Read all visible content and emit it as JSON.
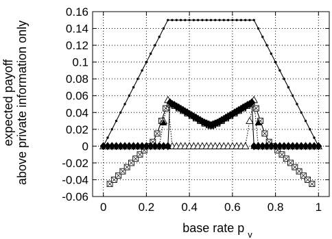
{
  "chart_data": {
    "type": "line",
    "title": "",
    "xlabel_main": "base rate p",
    "xlabel_sub": "v",
    "ylabel_lines": [
      "expected payoff",
      "above private information only"
    ],
    "xlim": [
      -0.05,
      1.05
    ],
    "ylim": [
      -0.06,
      0.16
    ],
    "x_ticks": [
      0,
      0.2,
      0.4,
      0.6,
      0.8,
      1
    ],
    "x_tick_labels": [
      "0",
      "0.2",
      "0.4",
      "0.6",
      "0.8",
      "1"
    ],
    "y_ticks": [
      -0.06,
      -0.04,
      -0.02,
      0,
      0.02,
      0.04,
      0.06,
      0.08,
      0.1,
      0.12,
      0.14,
      0.16
    ],
    "y_tick_labels": [
      "-0.06",
      "-0.04",
      "-0.02",
      "0",
      "0.02",
      "0.04",
      "0.06",
      "0.08",
      "0.1",
      "0.12",
      "0.14",
      "0.16"
    ],
    "grid": true,
    "legend": "none",
    "series": [
      {
        "marker": "dot",
        "line": "solid",
        "x": [
          0,
          0.02,
          0.04,
          0.06,
          0.08,
          0.1,
          0.12,
          0.14,
          0.16,
          0.18,
          0.2,
          0.22,
          0.24,
          0.26,
          0.28,
          0.3,
          0.32,
          0.34,
          0.36,
          0.38,
          0.4,
          0.42,
          0.44,
          0.46,
          0.48,
          0.5,
          0.52,
          0.54,
          0.56,
          0.58,
          0.6,
          0.62,
          0.64,
          0.66,
          0.68,
          0.7,
          0.72,
          0.74,
          0.76,
          0.78,
          0.8,
          0.82,
          0.84,
          0.86,
          0.88,
          0.9,
          0.92,
          0.94,
          0.96,
          0.98,
          1
        ],
        "y": [
          0,
          0.01,
          0.02,
          0.03,
          0.04,
          0.05,
          0.06,
          0.07,
          0.08,
          0.09,
          0.1,
          0.11,
          0.12,
          0.13,
          0.14,
          0.15,
          0.15,
          0.15,
          0.15,
          0.15,
          0.15,
          0.15,
          0.15,
          0.15,
          0.15,
          0.15,
          0.15,
          0.15,
          0.15,
          0.15,
          0.15,
          0.15,
          0.15,
          0.15,
          0.15,
          0.15,
          0.14,
          0.13,
          0.12,
          0.11,
          0.1,
          0.09,
          0.08,
          0.07,
          0.06,
          0.05,
          0.04,
          0.03,
          0.02,
          0.01,
          0
        ]
      },
      {
        "marker": "open-square-x",
        "line": "solid",
        "x": [
          0.03,
          0.05,
          0.07,
          0.09,
          0.11,
          0.13,
          0.15,
          0.17,
          0.19,
          0.21,
          0.23,
          0.25,
          0.27,
          0.29,
          0.31,
          0.33,
          0.35,
          0.37,
          0.39,
          0.41,
          0.43,
          0.45,
          0.47,
          0.49,
          0.5,
          0.51,
          0.53,
          0.55,
          0.57,
          0.59,
          0.61,
          0.63,
          0.65,
          0.67,
          0.69,
          0.71,
          0.73,
          0.75,
          0.77,
          0.79,
          0.81,
          0.83,
          0.85,
          0.87,
          0.89,
          0.91,
          0.93,
          0.95,
          0.97
        ],
        "y": [
          -0.045,
          -0.04,
          -0.035,
          -0.03,
          -0.025,
          -0.02,
          -0.015,
          -0.01,
          -0.005,
          0,
          0.005,
          0.015,
          0.03,
          0.045,
          0.05,
          0.048,
          0.045,
          0.042,
          0.039,
          0.036,
          0.033,
          0.03,
          0.027,
          0.025,
          0.024,
          0.025,
          0.027,
          0.03,
          0.033,
          0.036,
          0.039,
          0.042,
          0.045,
          0.048,
          0.05,
          0.045,
          0.03,
          0.015,
          0.005,
          0,
          -0.005,
          -0.01,
          -0.015,
          -0.02,
          -0.025,
          -0.03,
          -0.035,
          -0.04,
          -0.045
        ]
      },
      {
        "marker": "open-triangle",
        "line": "dotted",
        "x": [
          0,
          0.02,
          0.04,
          0.06,
          0.08,
          0.1,
          0.12,
          0.14,
          0.16,
          0.18,
          0.2,
          0.22,
          0.24,
          0.26,
          0.28,
          0.3,
          0.32,
          0.34,
          0.36,
          0.38,
          0.4,
          0.42,
          0.44,
          0.46,
          0.48,
          0.5,
          0.52,
          0.54,
          0.56,
          0.58,
          0.6,
          0.62,
          0.64,
          0.66,
          0.68,
          0.7,
          0.72,
          0.74,
          0.76,
          0.78,
          0.8,
          0.82,
          0.84,
          0.86,
          0.88,
          0.9,
          0.92,
          0.94,
          0.96,
          0.98,
          1
        ],
        "y": [
          0,
          0,
          0,
          0,
          0,
          0,
          0,
          0,
          0,
          0,
          0,
          0,
          0,
          0,
          0.03,
          0.055,
          0,
          0,
          0,
          0,
          0,
          0,
          0,
          0,
          0,
          0,
          0,
          0,
          0,
          0,
          0,
          0,
          0,
          0,
          0.03,
          0.055,
          0,
          0,
          0,
          0,
          0,
          0,
          0,
          0,
          0,
          0,
          0,
          0,
          0,
          0,
          0
        ]
      },
      {
        "marker": "filled-triangle",
        "line": "none",
        "x": [
          0.28,
          0.3,
          0.7,
          0.72
        ],
        "y": [
          0.028,
          0,
          0,
          0.028
        ]
      },
      {
        "marker": "filled-diamond",
        "line": "solid",
        "x": [
          0,
          0.02,
          0.04,
          0.06,
          0.08,
          0.1,
          0.12,
          0.14,
          0.16,
          0.18,
          0.2,
          0.22,
          0.24,
          0.26,
          0.28,
          0.3,
          0.31,
          0.32,
          0.33,
          0.34,
          0.35,
          0.36,
          0.37,
          0.38,
          0.39,
          0.4,
          0.41,
          0.42,
          0.43,
          0.44,
          0.45,
          0.46,
          0.47,
          0.48,
          0.49,
          0.5,
          0.51,
          0.52,
          0.53,
          0.54,
          0.55,
          0.56,
          0.57,
          0.58,
          0.59,
          0.6,
          0.61,
          0.62,
          0.63,
          0.64,
          0.65,
          0.66,
          0.67,
          0.68,
          0.69,
          0.7,
          0.72,
          0.74,
          0.76,
          0.78,
          0.8,
          0.82,
          0.84,
          0.86,
          0.88,
          0.9,
          0.92,
          0.94,
          0.96,
          0.98,
          1
        ],
        "y": [
          0,
          0,
          0,
          0,
          0,
          0,
          0,
          0,
          0,
          0,
          0,
          0,
          0,
          0,
          0,
          0,
          0.052,
          0.05,
          0.049,
          0.047,
          0.046,
          0.044,
          0.043,
          0.041,
          0.04,
          0.038,
          0.037,
          0.035,
          0.034,
          0.032,
          0.031,
          0.029,
          0.028,
          0.027,
          0.026,
          0.025,
          0.026,
          0.027,
          0.028,
          0.029,
          0.031,
          0.032,
          0.034,
          0.035,
          0.037,
          0.038,
          0.04,
          0.041,
          0.043,
          0.044,
          0.046,
          0.047,
          0.049,
          0.05,
          0.052,
          0,
          0,
          0,
          0,
          0,
          0,
          0,
          0,
          0,
          0,
          0,
          0,
          0,
          0,
          0,
          0
        ]
      }
    ]
  }
}
